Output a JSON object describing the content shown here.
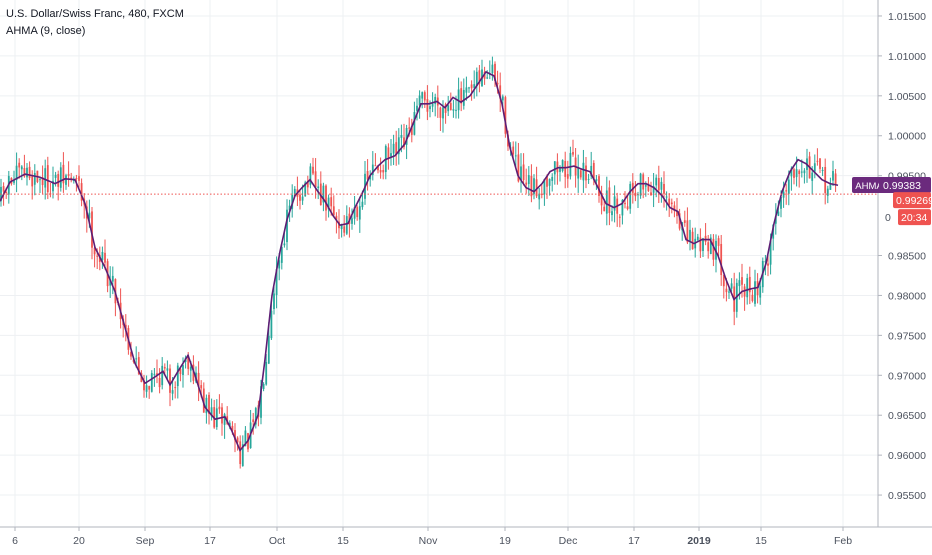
{
  "legend": {
    "title": "U.S. Dollar/Swiss Franc, 480, FXCM",
    "indicator": "AHMA (9, close)"
  },
  "price_badges": {
    "ahma": {
      "label": "AHMA",
      "value": "0.99383",
      "color": "#6b2a7d"
    },
    "last": {
      "value": "0.99269",
      "color": "#ef5350"
    },
    "countdown": {
      "prefix": "0",
      "value": "20:34",
      "color": "#ef5350"
    }
  },
  "colors": {
    "up": "#26a69a",
    "down": "#ef5350",
    "ahma": "#5d1d74",
    "grid": "#eef0f3",
    "axis_text": "#4c525e",
    "last_price_line": "#ef5350"
  },
  "chart_data": {
    "type": "line",
    "title": "U.S. Dollar/Swiss Franc, 480, FXCM",
    "xlabel": "",
    "ylabel": "",
    "ylim": [
      0.951,
      1.017
    ],
    "y_ticks": [
      "1.01500",
      "1.01000",
      "1.00500",
      "1.00000",
      "0.99500",
      "0.98500",
      "0.98000",
      "0.97500",
      "0.97000",
      "0.96500",
      "0.96000",
      "0.95500"
    ],
    "y_tick_values": [
      1.015,
      1.01,
      1.005,
      1.0,
      0.995,
      0.985,
      0.98,
      0.975,
      0.97,
      0.965,
      0.96,
      0.955
    ],
    "x_ticks": [
      "6",
      "20",
      "Sep",
      "17",
      "Oct",
      "15",
      "Nov",
      "19",
      "Dec",
      "17",
      "2019",
      "15",
      "Feb"
    ],
    "x_tick_positions": [
      15,
      79,
      145,
      210,
      277,
      343,
      428,
      505,
      568,
      634,
      699,
      761,
      843
    ],
    "grid": true,
    "last_price": 0.99269,
    "series": [
      {
        "name": "AHMA",
        "values": [
          [
            0,
            0.9918
          ],
          [
            10,
            0.9942
          ],
          [
            25,
            0.9952
          ],
          [
            40,
            0.9948
          ],
          [
            55,
            0.994
          ],
          [
            65,
            0.9946
          ],
          [
            75,
            0.9945
          ],
          [
            85,
            0.9915
          ],
          [
            95,
            0.986
          ],
          [
            105,
            0.9835
          ],
          [
            115,
            0.9805
          ],
          [
            125,
            0.976
          ],
          [
            135,
            0.9715
          ],
          [
            145,
            0.969
          ],
          [
            155,
            0.9698
          ],
          [
            163,
            0.9705
          ],
          [
            170,
            0.9688
          ],
          [
            178,
            0.9705
          ],
          [
            188,
            0.9725
          ],
          [
            195,
            0.97
          ],
          [
            205,
            0.966
          ],
          [
            215,
            0.9645
          ],
          [
            225,
            0.9648
          ],
          [
            232,
            0.963
          ],
          [
            240,
            0.9606
          ],
          [
            248,
            0.9618
          ],
          [
            258,
            0.965
          ],
          [
            265,
            0.972
          ],
          [
            272,
            0.98
          ],
          [
            280,
            0.9855
          ],
          [
            287,
            0.9895
          ],
          [
            295,
            0.9925
          ],
          [
            302,
            0.9935
          ],
          [
            310,
            0.9945
          ],
          [
            318,
            0.993
          ],
          [
            325,
            0.9918
          ],
          [
            333,
            0.99
          ],
          [
            340,
            0.9888
          ],
          [
            348,
            0.989
          ],
          [
            355,
            0.991
          ],
          [
            363,
            0.993
          ],
          [
            370,
            0.995
          ],
          [
            378,
            0.9962
          ],
          [
            385,
            0.997
          ],
          [
            395,
            0.9975
          ],
          [
            405,
            0.999
          ],
          [
            413,
            1.0015
          ],
          [
            421,
            1.004
          ],
          [
            429,
            1.004
          ],
          [
            437,
            1.0043
          ],
          [
            445,
            1.0035
          ],
          [
            453,
            1.0048
          ],
          [
            461,
            1.0042
          ],
          [
            470,
            1.005
          ],
          [
            478,
            1.0065
          ],
          [
            486,
            1.008
          ],
          [
            494,
            1.0075
          ],
          [
            502,
            1.004
          ],
          [
            510,
            0.9985
          ],
          [
            518,
            0.995
          ],
          [
            526,
            0.9935
          ],
          [
            534,
            0.993
          ],
          [
            542,
            0.994
          ],
          [
            550,
            0.9955
          ],
          [
            558,
            0.996
          ],
          [
            566,
            0.996
          ],
          [
            574,
            0.9962
          ],
          [
            582,
            0.9958
          ],
          [
            590,
            0.9955
          ],
          [
            598,
            0.9935
          ],
          [
            606,
            0.9915
          ],
          [
            614,
            0.991
          ],
          [
            622,
            0.9915
          ],
          [
            630,
            0.993
          ],
          [
            638,
            0.994
          ],
          [
            646,
            0.994
          ],
          [
            654,
            0.9935
          ],
          [
            662,
            0.9925
          ],
          [
            670,
            0.991
          ],
          [
            678,
            0.9905
          ],
          [
            686,
            0.987
          ],
          [
            694,
            0.9865
          ],
          [
            702,
            0.987
          ],
          [
            710,
            0.987
          ],
          [
            718,
            0.985
          ],
          [
            726,
            0.982
          ],
          [
            734,
            0.9795
          ],
          [
            742,
            0.9805
          ],
          [
            750,
            0.9808
          ],
          [
            758,
            0.981
          ],
          [
            766,
            0.984
          ],
          [
            774,
            0.989
          ],
          [
            782,
            0.993
          ],
          [
            790,
            0.9955
          ],
          [
            798,
            0.997
          ],
          [
            806,
            0.9965
          ],
          [
            814,
            0.9955
          ],
          [
            822,
            0.9945
          ],
          [
            830,
            0.994
          ],
          [
            838,
            0.9938
          ]
        ]
      }
    ]
  }
}
